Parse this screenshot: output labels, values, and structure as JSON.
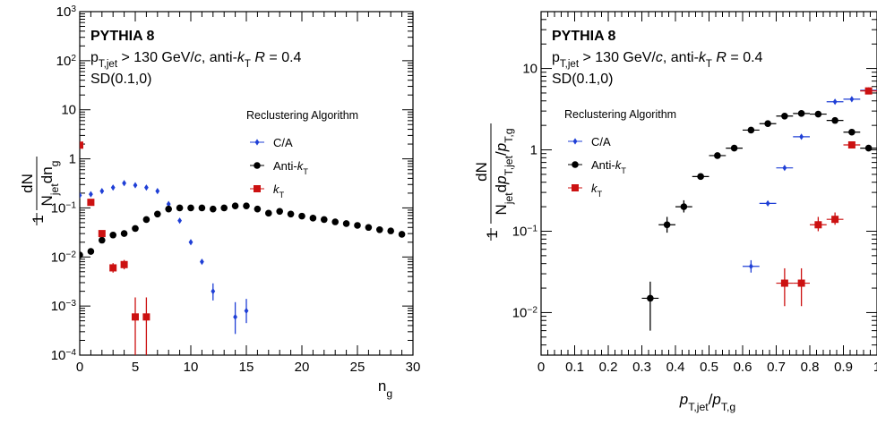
{
  "colors": {
    "ca": "#1f3fd6",
    "antikt": "#000000",
    "kt": "#cc1111",
    "axis": "#000000"
  },
  "chart_data": [
    {
      "type": "scatter",
      "log_y": true,
      "xlim": [
        0,
        30
      ],
      "ylim": [
        0.0001,
        1000
      ],
      "x_ticks": [
        "0",
        "5",
        "10",
        "15",
        "20",
        "25",
        "30"
      ],
      "y_ticks": [
        "10^-4",
        "10^-3",
        "10^-2",
        "10^-1",
        "1",
        "10",
        "10^2",
        "10^3"
      ],
      "xlabel": "n_g",
      "ylabel": "1/N_jet dN/dn_g",
      "title": "PYTHIA 8",
      "info_lines": [
        "p_T,jet > 130 GeV/c, anti-k_T R = 0.4",
        "SD(0.1,0)"
      ],
      "legend_title": "Reclustering Algorithm",
      "legend_position": "right",
      "series": [
        {
          "name": "C/A",
          "marker": "diamond",
          "points": [
            {
              "x": 0,
              "y": 0.18
            },
            {
              "x": 1,
              "y": 0.19
            },
            {
              "x": 2,
              "y": 0.22
            },
            {
              "x": 3,
              "y": 0.26
            },
            {
              "x": 4,
              "y": 0.32
            },
            {
              "x": 5,
              "y": 0.29
            },
            {
              "x": 6,
              "y": 0.26
            },
            {
              "x": 7,
              "y": 0.22
            },
            {
              "x": 8,
              "y": 0.12
            },
            {
              "x": 9,
              "y": 0.055
            },
            {
              "x": 10,
              "y": 0.02
            },
            {
              "x": 11,
              "y": 0.008
            },
            {
              "x": 12,
              "y": 0.002,
              "err": [
                0.0013,
                0.0029
              ]
            },
            {
              "x": 14,
              "y": 0.0006,
              "err": [
                0.00027,
                0.0012
              ]
            },
            {
              "x": 15,
              "y": 0.0008,
              "err": [
                0.00045,
                0.0014
              ]
            }
          ]
        },
        {
          "name": "Anti-k_T",
          "marker": "circle",
          "points": [
            {
              "x": 0,
              "y": 0.011
            },
            {
              "x": 1,
              "y": 0.013
            },
            {
              "x": 2,
              "y": 0.022
            },
            {
              "x": 3,
              "y": 0.028
            },
            {
              "x": 4,
              "y": 0.03
            },
            {
              "x": 5,
              "y": 0.038
            },
            {
              "x": 6,
              "y": 0.058
            },
            {
              "x": 7,
              "y": 0.075
            },
            {
              "x": 8,
              "y": 0.095
            },
            {
              "x": 9,
              "y": 0.1
            },
            {
              "x": 10,
              "y": 0.1
            },
            {
              "x": 11,
              "y": 0.1
            },
            {
              "x": 12,
              "y": 0.095
            },
            {
              "x": 13,
              "y": 0.1
            },
            {
              "x": 14,
              "y": 0.11
            },
            {
              "x": 15,
              "y": 0.11
            },
            {
              "x": 16,
              "y": 0.095
            },
            {
              "x": 17,
              "y": 0.078
            },
            {
              "x": 18,
              "y": 0.085
            },
            {
              "x": 19,
              "y": 0.075
            },
            {
              "x": 20,
              "y": 0.068
            },
            {
              "x": 21,
              "y": 0.062
            },
            {
              "x": 22,
              "y": 0.058
            },
            {
              "x": 23,
              "y": 0.052
            },
            {
              "x": 24,
              "y": 0.048
            },
            {
              "x": 25,
              "y": 0.044
            },
            {
              "x": 26,
              "y": 0.04
            },
            {
              "x": 27,
              "y": 0.036
            },
            {
              "x": 28,
              "y": 0.034
            },
            {
              "x": 29,
              "y": 0.029
            }
          ]
        },
        {
          "name": "k_T",
          "marker": "square",
          "points": [
            {
              "x": 0,
              "y": 1.9
            },
            {
              "x": 1,
              "y": 0.13
            },
            {
              "x": 2,
              "y": 0.03
            },
            {
              "x": 3,
              "y": 0.006,
              "err": [
                0.0048,
                0.0075
              ]
            },
            {
              "x": 4,
              "y": 0.007,
              "err": [
                0.0056,
                0.0087
              ]
            },
            {
              "x": 5,
              "y": 0.0006,
              "err": [
                0.0001,
                0.0015
              ]
            },
            {
              "x": 6,
              "y": 0.0006,
              "err": [
                0.0001,
                0.0015
              ]
            }
          ]
        }
      ]
    },
    {
      "type": "scatter",
      "log_y": true,
      "xlim": [
        0,
        1
      ],
      "ylim": [
        0.003,
        50
      ],
      "x_ticks": [
        "0",
        "0.1",
        "0.2",
        "0.3",
        "0.4",
        "0.5",
        "0.6",
        "0.7",
        "0.8",
        "0.9",
        "1"
      ],
      "y_ticks": [
        "10^-2",
        "10^-1",
        "1",
        "10"
      ],
      "xlabel": "p_T,jet / p_T,g",
      "ylabel": "1/N_jet dN/dp_T,jet/p_T,g",
      "title": "PYTHIA 8",
      "info_lines": [
        "p_T,jet > 130 GeV/c, anti-k_T R = 0.4",
        "SD(0.1,0)"
      ],
      "legend_title": "Reclustering Algorithm",
      "legend_position": "left",
      "bin_half_width": 0.025,
      "series": [
        {
          "name": "C/A",
          "marker": "diamond",
          "points": [
            {
              "x": 0.625,
              "y": 0.037,
              "err": [
                0.031,
                0.044
              ]
            },
            {
              "x": 0.675,
              "y": 0.22
            },
            {
              "x": 0.725,
              "y": 0.6
            },
            {
              "x": 0.775,
              "y": 1.45
            },
            {
              "x": 0.875,
              "y": 3.9
            },
            {
              "x": 0.925,
              "y": 4.2
            },
            {
              "x": 0.975,
              "y": 5.4
            }
          ]
        },
        {
          "name": "Anti-k_T",
          "marker": "circle",
          "points": [
            {
              "x": 0.325,
              "y": 0.015,
              "err": [
                0.006,
                0.024
              ]
            },
            {
              "x": 0.375,
              "y": 0.12,
              "err": [
                0.096,
                0.15
              ]
            },
            {
              "x": 0.425,
              "y": 0.2,
              "err": [
                0.17,
                0.24
              ]
            },
            {
              "x": 0.475,
              "y": 0.47
            },
            {
              "x": 0.525,
              "y": 0.85
            },
            {
              "x": 0.575,
              "y": 1.05
            },
            {
              "x": 0.625,
              "y": 1.75
            },
            {
              "x": 0.675,
              "y": 2.1
            },
            {
              "x": 0.725,
              "y": 2.6
            },
            {
              "x": 0.775,
              "y": 2.8
            },
            {
              "x": 0.825,
              "y": 2.75
            },
            {
              "x": 0.875,
              "y": 2.3
            },
            {
              "x": 0.925,
              "y": 1.65
            },
            {
              "x": 0.975,
              "y": 1.05
            }
          ]
        },
        {
          "name": "k_T",
          "marker": "square",
          "points": [
            {
              "x": 0.725,
              "y": 0.023,
              "err": [
                0.012,
                0.035
              ]
            },
            {
              "x": 0.775,
              "y": 0.023,
              "err": [
                0.012,
                0.035
              ]
            },
            {
              "x": 0.825,
              "y": 0.12,
              "err": [
                0.1,
                0.15
              ]
            },
            {
              "x": 0.875,
              "y": 0.14,
              "err": [
                0.12,
                0.17
              ]
            },
            {
              "x": 0.925,
              "y": 1.15
            },
            {
              "x": 0.975,
              "y": 5.3
            }
          ]
        }
      ]
    }
  ]
}
